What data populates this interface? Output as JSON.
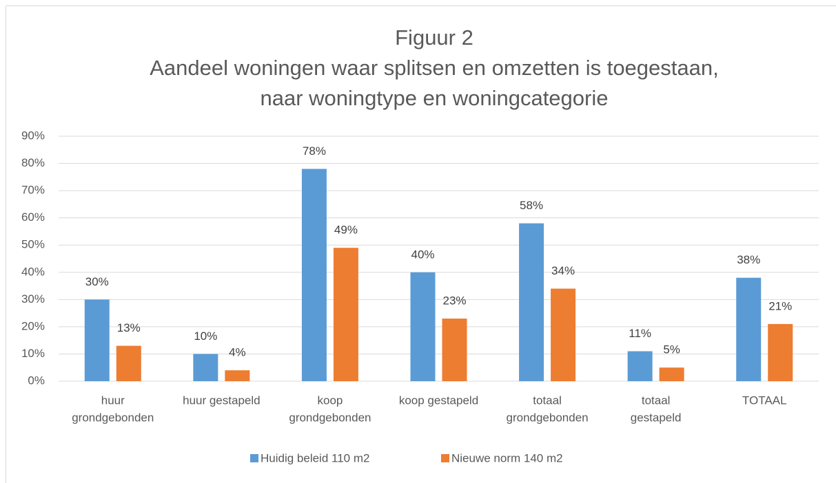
{
  "chart_data": {
    "type": "bar",
    "title": [
      "Figuur 2",
      "Aandeel woningen waar splitsen en omzetten is toegestaan,",
      "naar woningtype en woningcategorie"
    ],
    "categories": [
      [
        "huur",
        "grondgebonden"
      ],
      [
        "huur gestapeld"
      ],
      [
        "koop",
        "grondgebonden"
      ],
      [
        "koop gestapeld"
      ],
      [
        "totaal",
        "grondgebonden"
      ],
      [
        "totaal",
        "gestapeld"
      ],
      [
        "TOTAAL"
      ]
    ],
    "series": [
      {
        "name": "Huidig beleid 110 m2",
        "color": "#5b9bd5",
        "values": [
          30,
          10,
          78,
          40,
          58,
          11,
          38
        ],
        "value_labels": [
          "30%",
          "10%",
          "78%",
          "40%",
          "58%",
          "11%",
          "38%"
        ]
      },
      {
        "name": "Nieuwe norm 140 m2",
        "color": "#ed7d31",
        "values": [
          13,
          4,
          49,
          23,
          34,
          5,
          21
        ],
        "value_labels": [
          "13%",
          "4%",
          "49%",
          "23%",
          "34%",
          "5%",
          "21%"
        ]
      }
    ],
    "ylim": [
      0,
      90
    ],
    "yticks": [
      {
        "value": 0,
        "label": "0%"
      },
      {
        "value": 10,
        "label": "10%"
      },
      {
        "value": 20,
        "label": "20%"
      },
      {
        "value": 30,
        "label": "30%"
      },
      {
        "value": 40,
        "label": "40%"
      },
      {
        "value": 50,
        "label": "50%"
      },
      {
        "value": 60,
        "label": "60%"
      },
      {
        "value": 70,
        "label": "70%"
      },
      {
        "value": 80,
        "label": "80%"
      },
      {
        "value": 90,
        "label": "90%"
      }
    ],
    "grid": true,
    "legend": "bottom"
  }
}
